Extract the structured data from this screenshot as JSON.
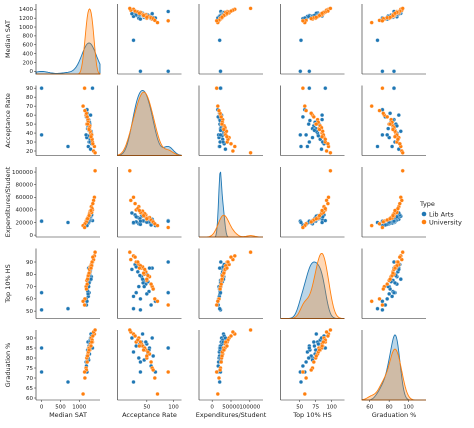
{
  "chart_data": {
    "type": "scatter",
    "variables": [
      {
        "label": "Median SAT",
        "range": [
          -150,
          1550
        ],
        "ticks": [
          "0",
          "500",
          "1000"
        ],
        "tick_values": [
          0,
          500,
          1000
        ],
        "yticks": [
          "0",
          "200",
          "400",
          "600",
          "800",
          "1000",
          "1200",
          "1400"
        ],
        "ytick_values": [
          0,
          200,
          400,
          600,
          800,
          1000,
          1200,
          1400
        ],
        "yrange": [
          -60,
          1520
        ]
      },
      {
        "label": "Acceptance Rate",
        "range": [
          -5,
          115
        ],
        "ticks": [
          "50",
          "100"
        ],
        "tick_values": [
          50,
          100
        ],
        "yticks": [
          "20",
          "30",
          "40",
          "50",
          "60",
          "70",
          "80",
          "90"
        ],
        "ytick_values": [
          20,
          30,
          40,
          50,
          60,
          70,
          80,
          90
        ],
        "yrange": [
          15,
          93
        ]
      },
      {
        "label": "Expenditures/Student",
        "range": [
          -35000,
          135000
        ],
        "ticks": [
          "0",
          "50000",
          "100000"
        ],
        "tick_values": [
          0,
          50000,
          100000
        ],
        "yticks": [
          "0",
          "20000",
          "40000",
          "60000",
          "80000",
          "100000"
        ],
        "ytick_values": [
          0,
          20000,
          40000,
          60000,
          80000,
          100000
        ],
        "yrange": [
          -3000,
          108000
        ]
      },
      {
        "label": "Top 10% HS",
        "range": [
          20,
          120
        ],
        "ticks": [
          "50",
          "75",
          "100"
        ],
        "tick_values": [
          50,
          75,
          100
        ],
        "yticks": [
          "50",
          "60",
          "70",
          "80",
          "90"
        ],
        "ytick_values": [
          50,
          60,
          70,
          80,
          90
        ],
        "yrange": [
          44,
          101
        ]
      },
      {
        "label": "Graduation %",
        "range": [
          52,
          118
        ],
        "ticks": [
          "60",
          "80",
          "100"
        ],
        "tick_values": [
          60,
          80,
          100
        ],
        "yticks": [
          "60",
          "65",
          "70",
          "75",
          "80",
          "85",
          "90"
        ],
        "ytick_values": [
          60,
          65,
          70,
          75,
          80,
          85,
          90
        ],
        "yrange": [
          59,
          94
        ]
      }
    ],
    "hue_label": "Type",
    "series": [
      {
        "name": "Lib Arts",
        "color": "#1f77b4",
        "points": [
          [
            1350,
            90,
            23000,
            90,
            85
          ],
          [
            1300,
            60,
            25000,
            85,
            90
          ],
          [
            1250,
            55,
            20000,
            85,
            85
          ],
          [
            1280,
            50,
            26000,
            80,
            87
          ],
          [
            1220,
            45,
            22000,
            75,
            84
          ],
          [
            1320,
            40,
            31000,
            78,
            88
          ],
          [
            1200,
            35,
            18000,
            70,
            80
          ],
          [
            1260,
            30,
            21000,
            65,
            86
          ],
          [
            1240,
            25,
            19000,
            62,
            83
          ],
          [
            1180,
            38,
            17000,
            60,
            78
          ],
          [
            1230,
            48,
            24000,
            72,
            88
          ],
          [
            1270,
            52,
            27000,
            74,
            82
          ],
          [
            1310,
            42,
            30000,
            76,
            92
          ],
          [
            1190,
            58,
            16000,
            55,
            76
          ],
          [
            1210,
            62,
            19500,
            68,
            81
          ],
          [
            1290,
            33,
            28000,
            82,
            89
          ],
          [
            1330,
            28,
            32000,
            88,
            91
          ],
          [
            1250,
            45,
            23000,
            70,
            79
          ],
          [
            1225,
            54,
            21000,
            66,
            84
          ],
          [
            1275,
            37,
            26000,
            79,
            87
          ],
          [
            1300,
            22,
            35000,
            84,
            90
          ],
          [
            1205,
            66,
            15000,
            58,
            73
          ],
          [
            1260,
            43,
            22500,
            73,
            86
          ],
          [
            1235,
            50,
            20500,
            64,
            80
          ],
          [
            1285,
            30,
            29000,
            86,
            88
          ],
          [
            0,
            90,
            22000,
            65,
            85
          ],
          [
            0,
            38,
            22000,
            51,
            73
          ],
          [
            700,
            25,
            20000,
            52,
            68
          ]
        ]
      },
      {
        "name": "University",
        "color": "#ff7f0e",
        "points": [
          [
            1400,
            25,
            60000,
            95,
            92
          ],
          [
            1350,
            30,
            40000,
            90,
            88
          ],
          [
            1300,
            40,
            35000,
            85,
            87
          ],
          [
            1250,
            45,
            30000,
            80,
            85
          ],
          [
            1200,
            50,
            25000,
            75,
            80
          ],
          [
            1380,
            20,
            55000,
            92,
            93
          ],
          [
            1320,
            35,
            45000,
            88,
            90
          ],
          [
            1280,
            48,
            32000,
            82,
            84
          ],
          [
            1230,
            55,
            28000,
            78,
            82
          ],
          [
            1180,
            60,
            22000,
            70,
            75
          ],
          [
            1360,
            28,
            50000,
            94,
            91
          ],
          [
            1290,
            42,
            38000,
            86,
            86
          ],
          [
            1240,
            52,
            27000,
            79,
            83
          ],
          [
            1210,
            58,
            24000,
            72,
            78
          ],
          [
            1340,
            33,
            42000,
            90,
            89
          ],
          [
            1270,
            46,
            34000,
            84,
            85
          ],
          [
            1190,
            62,
            21000,
            68,
            74
          ],
          [
            1330,
            38,
            36000,
            87,
            88
          ],
          [
            1260,
            44,
            31000,
            81,
            84
          ],
          [
            1420,
            18,
            102000,
            98,
            94
          ],
          [
            1150,
            65,
            18000,
            60,
            70
          ],
          [
            1310,
            36,
            39000,
            85,
            86
          ],
          [
            1220,
            50,
            26000,
            76,
            81
          ],
          [
            1100,
            70,
            15000,
            58,
            62
          ],
          [
            1140,
            90,
            12000,
            55,
            73
          ]
        ]
      }
    ],
    "legend_position": "right"
  }
}
